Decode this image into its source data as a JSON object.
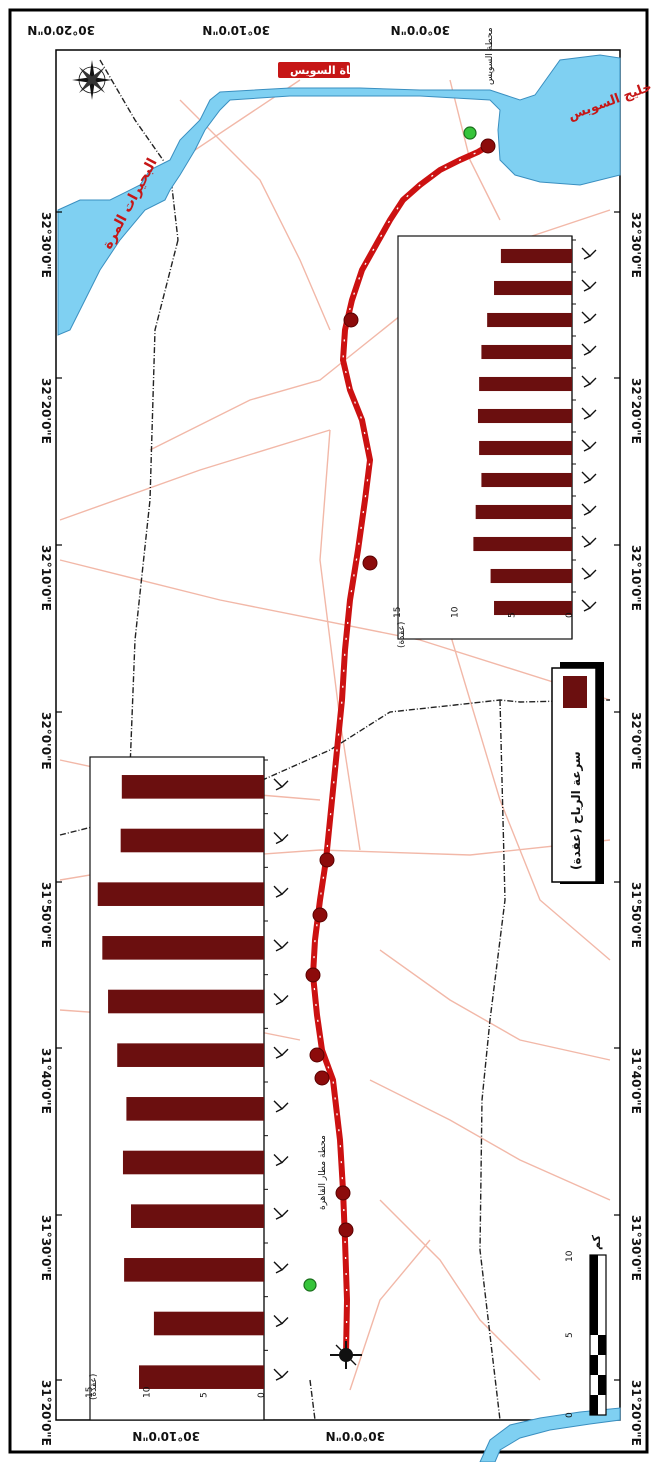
{
  "map": {
    "coords_top": [
      "30°20'0\"N",
      "30°10'0\"N",
      "30°0'0\"N"
    ],
    "coords_bottom": [
      "30°10'0\"N",
      "30°0'0\"N"
    ],
    "coords_left": [
      "31°20'0\"E",
      "31°30'0\"E",
      "31°40'0\"E",
      "31°50'0\"E",
      "32°0'0\"E",
      "32°10'0\"E",
      "32°20'0\"E",
      "32°30'0\"E"
    ],
    "coords_right": [
      "31°20'0\"E",
      "31°30'0\"E",
      "31°40'0\"E",
      "31°50'0\"E",
      "32°0'0\"E",
      "32°10'0\"E",
      "32°20'0\"E",
      "32°30'0\"E"
    ],
    "water_labels": [
      "البحيرات المرة",
      "قناة السويس",
      "خليج السويس"
    ],
    "stations": [
      "محطة مطار القاهرة",
      "محطة السويس"
    ],
    "colors": {
      "route": "#cc1111",
      "road": "#f2b8a8",
      "water": "#7fd0f2",
      "bar": "#6b0f0f",
      "station": "#36c43a"
    }
  },
  "legend": {
    "label": "سرعة الرياح (عقدة)"
  },
  "scale": {
    "unit": "كم",
    "ticks": [
      "0",
      "5",
      "10"
    ]
  },
  "chart_data": [
    {
      "type": "bar",
      "ylabel": "(عقدة)",
      "ticks": [
        "0",
        "5",
        "10",
        "15"
      ],
      "ylim": [
        0,
        15
      ],
      "values": [
        12.4,
        12.5,
        14.5,
        14.1,
        13.6,
        12.8,
        12.0,
        12.3,
        11.6,
        12.2,
        9.6,
        10.9
      ]
    },
    {
      "type": "bar",
      "ylabel": "(عقدة)",
      "ticks": [
        "0",
        "5",
        "10",
        "15"
      ],
      "ylim": [
        0,
        15
      ],
      "values": [
        6.2,
        6.8,
        7.4,
        7.9,
        8.1,
        8.2,
        8.1,
        7.9,
        8.4,
        8.6,
        7.1,
        6.8
      ]
    }
  ]
}
